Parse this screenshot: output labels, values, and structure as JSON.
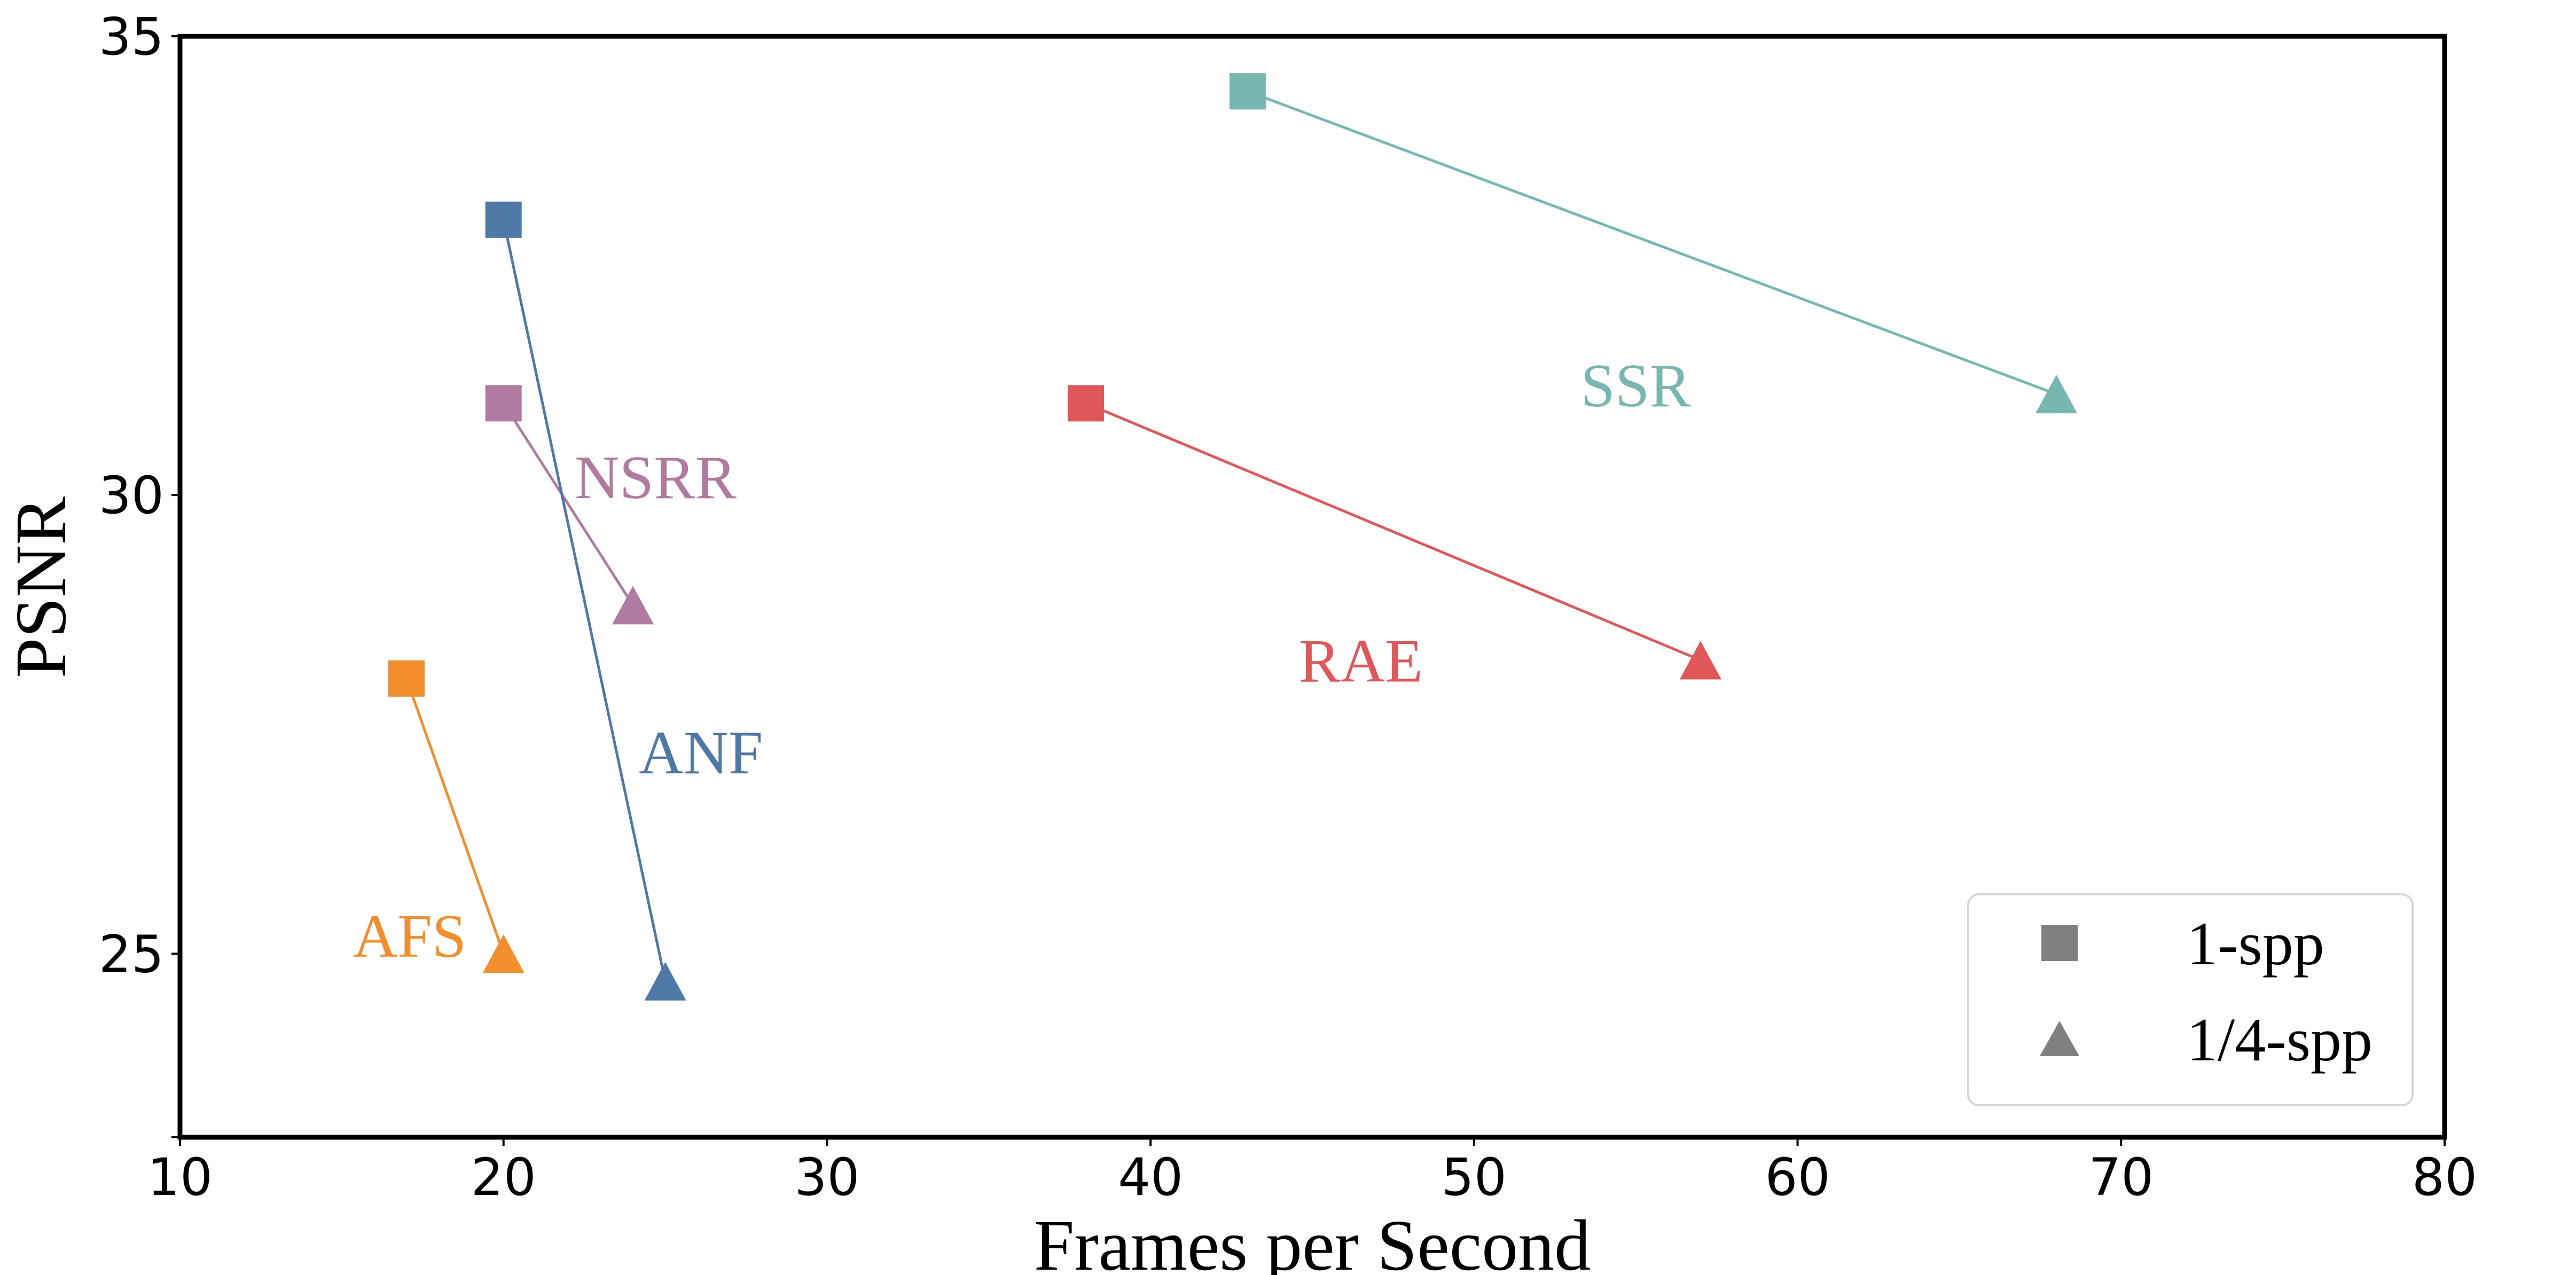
{
  "chart_data": {
    "type": "scatter",
    "xlabel": "Frames per Second",
    "ylabel": "PSNR",
    "xlim": [
      10,
      80
    ],
    "ylim": [
      23,
      35
    ],
    "xticks": [
      "10",
      "20",
      "30",
      "40",
      "50",
      "60",
      "70",
      "80"
    ],
    "yticks": [
      "25",
      "30",
      "35"
    ],
    "grid": false,
    "legend": {
      "placement": "bottom-right",
      "entries": [
        {
          "marker": "square",
          "label": "1-spp",
          "color": "#808080"
        },
        {
          "marker": "triangle",
          "label": "1/4-spp",
          "color": "#808080"
        }
      ]
    },
    "series": [
      {
        "name": "SSR",
        "color": "#76b7b2",
        "points": [
          {
            "x": 43,
            "y": 34.4,
            "marker": "square"
          },
          {
            "x": 68,
            "y": 31.1,
            "marker": "triangle"
          }
        ],
        "label_at": {
          "x": 55,
          "y": 31.2
        }
      },
      {
        "name": "RAE",
        "color": "#e15759",
        "points": [
          {
            "x": 38,
            "y": 31.0,
            "marker": "square"
          },
          {
            "x": 57,
            "y": 28.2,
            "marker": "triangle"
          }
        ],
        "label_at": {
          "x": 46.5,
          "y": 28.2
        }
      },
      {
        "name": "NSRR",
        "color": "#b07aa1",
        "points": [
          {
            "x": 20,
            "y": 31.0,
            "marker": "square"
          },
          {
            "x": 24,
            "y": 28.8,
            "marker": "triangle"
          }
        ],
        "label_at": {
          "x": 24.7,
          "y": 30.2
        }
      },
      {
        "name": "ANF",
        "color": "#4e79a7",
        "points": [
          {
            "x": 20,
            "y": 33.0,
            "marker": "square"
          },
          {
            "x": 25,
            "y": 24.7,
            "marker": "triangle"
          }
        ],
        "label_at": {
          "x": 26.1,
          "y": 27.2
        }
      },
      {
        "name": "AFS",
        "color": "#f28e2b",
        "points": [
          {
            "x": 17,
            "y": 28.0,
            "marker": "square"
          },
          {
            "x": 20,
            "y": 25.0,
            "marker": "triangle"
          }
        ],
        "label_at": {
          "x": 17.1,
          "y": 25.2
        }
      }
    ]
  }
}
